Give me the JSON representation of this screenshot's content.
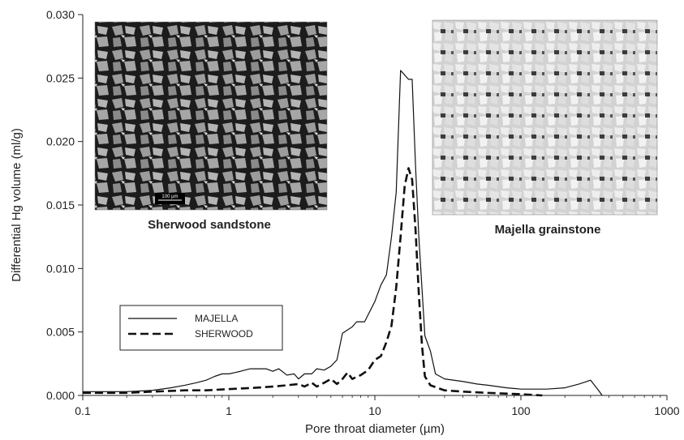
{
  "chart_data": {
    "type": "line",
    "x_scale": "log",
    "xlabel": "Pore throat diameter (µm)",
    "ylabel": "Differential Hg volume (ml/g)",
    "xlim": [
      0.1,
      1000
    ],
    "ylim": [
      0,
      0.03
    ],
    "x_ticks": [
      0.1,
      1,
      10,
      100,
      1000
    ],
    "x_tick_labels": [
      "0.1",
      "1",
      "10",
      "100",
      "1000"
    ],
    "y_ticks": [
      0,
      0.005,
      0.01,
      0.015,
      0.02,
      0.025,
      0.03
    ],
    "y_tick_labels": [
      "0.000",
      "0.005",
      "0.010",
      "0.015",
      "0.020",
      "0.025",
      "0.030"
    ],
    "legend_position": "lower-left",
    "grid": false,
    "series": [
      {
        "name": "MAJELLA",
        "style": "solid",
        "color": "#111111",
        "points": [
          [
            0.1,
            0.0003
          ],
          [
            0.15,
            0.0003
          ],
          [
            0.2,
            0.0003
          ],
          [
            0.3,
            0.0004
          ],
          [
            0.4,
            0.0006
          ],
          [
            0.5,
            0.0008
          ],
          [
            0.6,
            0.001
          ],
          [
            0.7,
            0.0012
          ],
          [
            0.8,
            0.0015
          ],
          [
            0.9,
            0.0017
          ],
          [
            1.0,
            0.0017
          ],
          [
            1.1,
            0.0018
          ],
          [
            1.2,
            0.0019
          ],
          [
            1.4,
            0.0021
          ],
          [
            1.6,
            0.0021
          ],
          [
            1.8,
            0.0021
          ],
          [
            2.0,
            0.0019
          ],
          [
            2.2,
            0.0021
          ],
          [
            2.5,
            0.0016
          ],
          [
            2.8,
            0.0017
          ],
          [
            3.0,
            0.0013
          ],
          [
            3.3,
            0.0017
          ],
          [
            3.7,
            0.0017
          ],
          [
            4.0,
            0.0021
          ],
          [
            4.5,
            0.002
          ],
          [
            5.0,
            0.0023
          ],
          [
            5.5,
            0.0028
          ],
          [
            6.0,
            0.0049
          ],
          [
            7.0,
            0.0054
          ],
          [
            7.5,
            0.0058
          ],
          [
            8.5,
            0.0058
          ],
          [
            10.0,
            0.0074
          ],
          [
            11.0,
            0.0087
          ],
          [
            12.0,
            0.0095
          ],
          [
            13.0,
            0.0125
          ],
          [
            14.0,
            0.016
          ],
          [
            15.0,
            0.0256
          ],
          [
            17.0,
            0.0249
          ],
          [
            18.0,
            0.0249
          ],
          [
            19.0,
            0.018
          ],
          [
            20.0,
            0.0125
          ],
          [
            21.0,
            0.0085
          ],
          [
            22.0,
            0.0047
          ],
          [
            24.0,
            0.0035
          ],
          [
            26.0,
            0.0017
          ],
          [
            30.0,
            0.0013
          ],
          [
            40.0,
            0.0011
          ],
          [
            50.0,
            0.0009
          ],
          [
            60.0,
            0.0008
          ],
          [
            80.0,
            0.0006
          ],
          [
            100.0,
            0.0005
          ],
          [
            150.0,
            0.0005
          ],
          [
            200.0,
            0.0006
          ],
          [
            250.0,
            0.0009
          ],
          [
            300.0,
            0.0012
          ],
          [
            340.0,
            0.0004
          ],
          [
            360.0,
            0.0
          ]
        ]
      },
      {
        "name": "SHERWOOD",
        "style": "dashed",
        "color": "#111111",
        "points": [
          [
            0.1,
            0.0002
          ],
          [
            0.2,
            0.0002
          ],
          [
            0.3,
            0.0003
          ],
          [
            0.5,
            0.0004
          ],
          [
            0.7,
            0.0004
          ],
          [
            1.0,
            0.0005
          ],
          [
            1.5,
            0.0006
          ],
          [
            2.0,
            0.0007
          ],
          [
            2.5,
            0.0008
          ],
          [
            3.0,
            0.0009
          ],
          [
            3.3,
            0.0007
          ],
          [
            3.7,
            0.001
          ],
          [
            4.0,
            0.0007
          ],
          [
            4.5,
            0.001
          ],
          [
            5.0,
            0.0013
          ],
          [
            5.5,
            0.0009
          ],
          [
            6.0,
            0.0013
          ],
          [
            6.5,
            0.0018
          ],
          [
            7.0,
            0.0013
          ],
          [
            8.0,
            0.0016
          ],
          [
            9.0,
            0.002
          ],
          [
            10.0,
            0.0028
          ],
          [
            11.0,
            0.0031
          ],
          [
            12.0,
            0.0042
          ],
          [
            13.0,
            0.0055
          ],
          [
            14.0,
            0.0085
          ],
          [
            15.0,
            0.0125
          ],
          [
            16.0,
            0.0165
          ],
          [
            17.0,
            0.0179
          ],
          [
            18.0,
            0.017
          ],
          [
            19.0,
            0.013
          ],
          [
            20.0,
            0.008
          ],
          [
            21.0,
            0.004
          ],
          [
            22.0,
            0.0015
          ],
          [
            24.0,
            0.0008
          ],
          [
            30.0,
            0.0004
          ],
          [
            40.0,
            0.0003
          ],
          [
            60.0,
            0.0002
          ],
          [
            100.0,
            0.0001
          ],
          [
            140.0,
            0.0
          ]
        ]
      }
    ]
  },
  "captions": {
    "left": "Sherwood sandstone",
    "right": "Majella grainstone"
  },
  "scale_bar_label": "100 µm"
}
